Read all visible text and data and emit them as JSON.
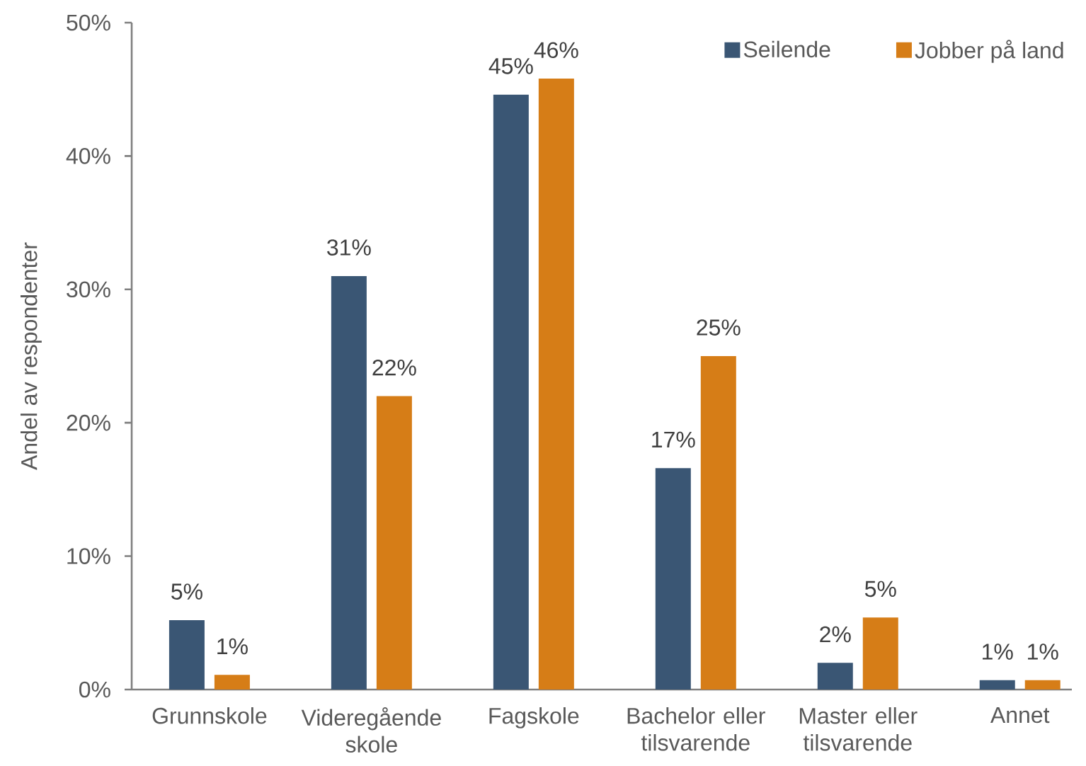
{
  "chart_data": {
    "type": "bar",
    "ylabel": "Andel av respondenter",
    "categories": [
      "Grunnskole",
      "Videregående skole",
      "Fagskole",
      "Bachelor eller tilsvarende",
      "Master eller tilsvarende",
      "Annet"
    ],
    "series": [
      {
        "name": "Seilende",
        "color": "#3a5674",
        "values": [
          5.2,
          31.0,
          44.6,
          16.6,
          2.0,
          0.7
        ],
        "value_labels": [
          "5%",
          "31%",
          "45%",
          "17%",
          "2%",
          "1%"
        ]
      },
      {
        "name": "Jobber på land",
        "color": "#d67d17",
        "values": [
          1.1,
          22.0,
          45.8,
          25.0,
          5.4,
          0.7
        ],
        "value_labels": [
          "1%",
          "22%",
          "46%",
          "25%",
          "5%",
          "1%"
        ]
      }
    ],
    "ylim": [
      0,
      50
    ],
    "yticks": [
      {
        "value": 0,
        "label": "0%"
      },
      {
        "value": 10,
        "label": "10%"
      },
      {
        "value": 20,
        "label": "20%"
      },
      {
        "value": 30,
        "label": "30%"
      },
      {
        "value": 40,
        "label": "40%"
      },
      {
        "value": 50,
        "label": "50%"
      }
    ],
    "legend": "top right"
  }
}
